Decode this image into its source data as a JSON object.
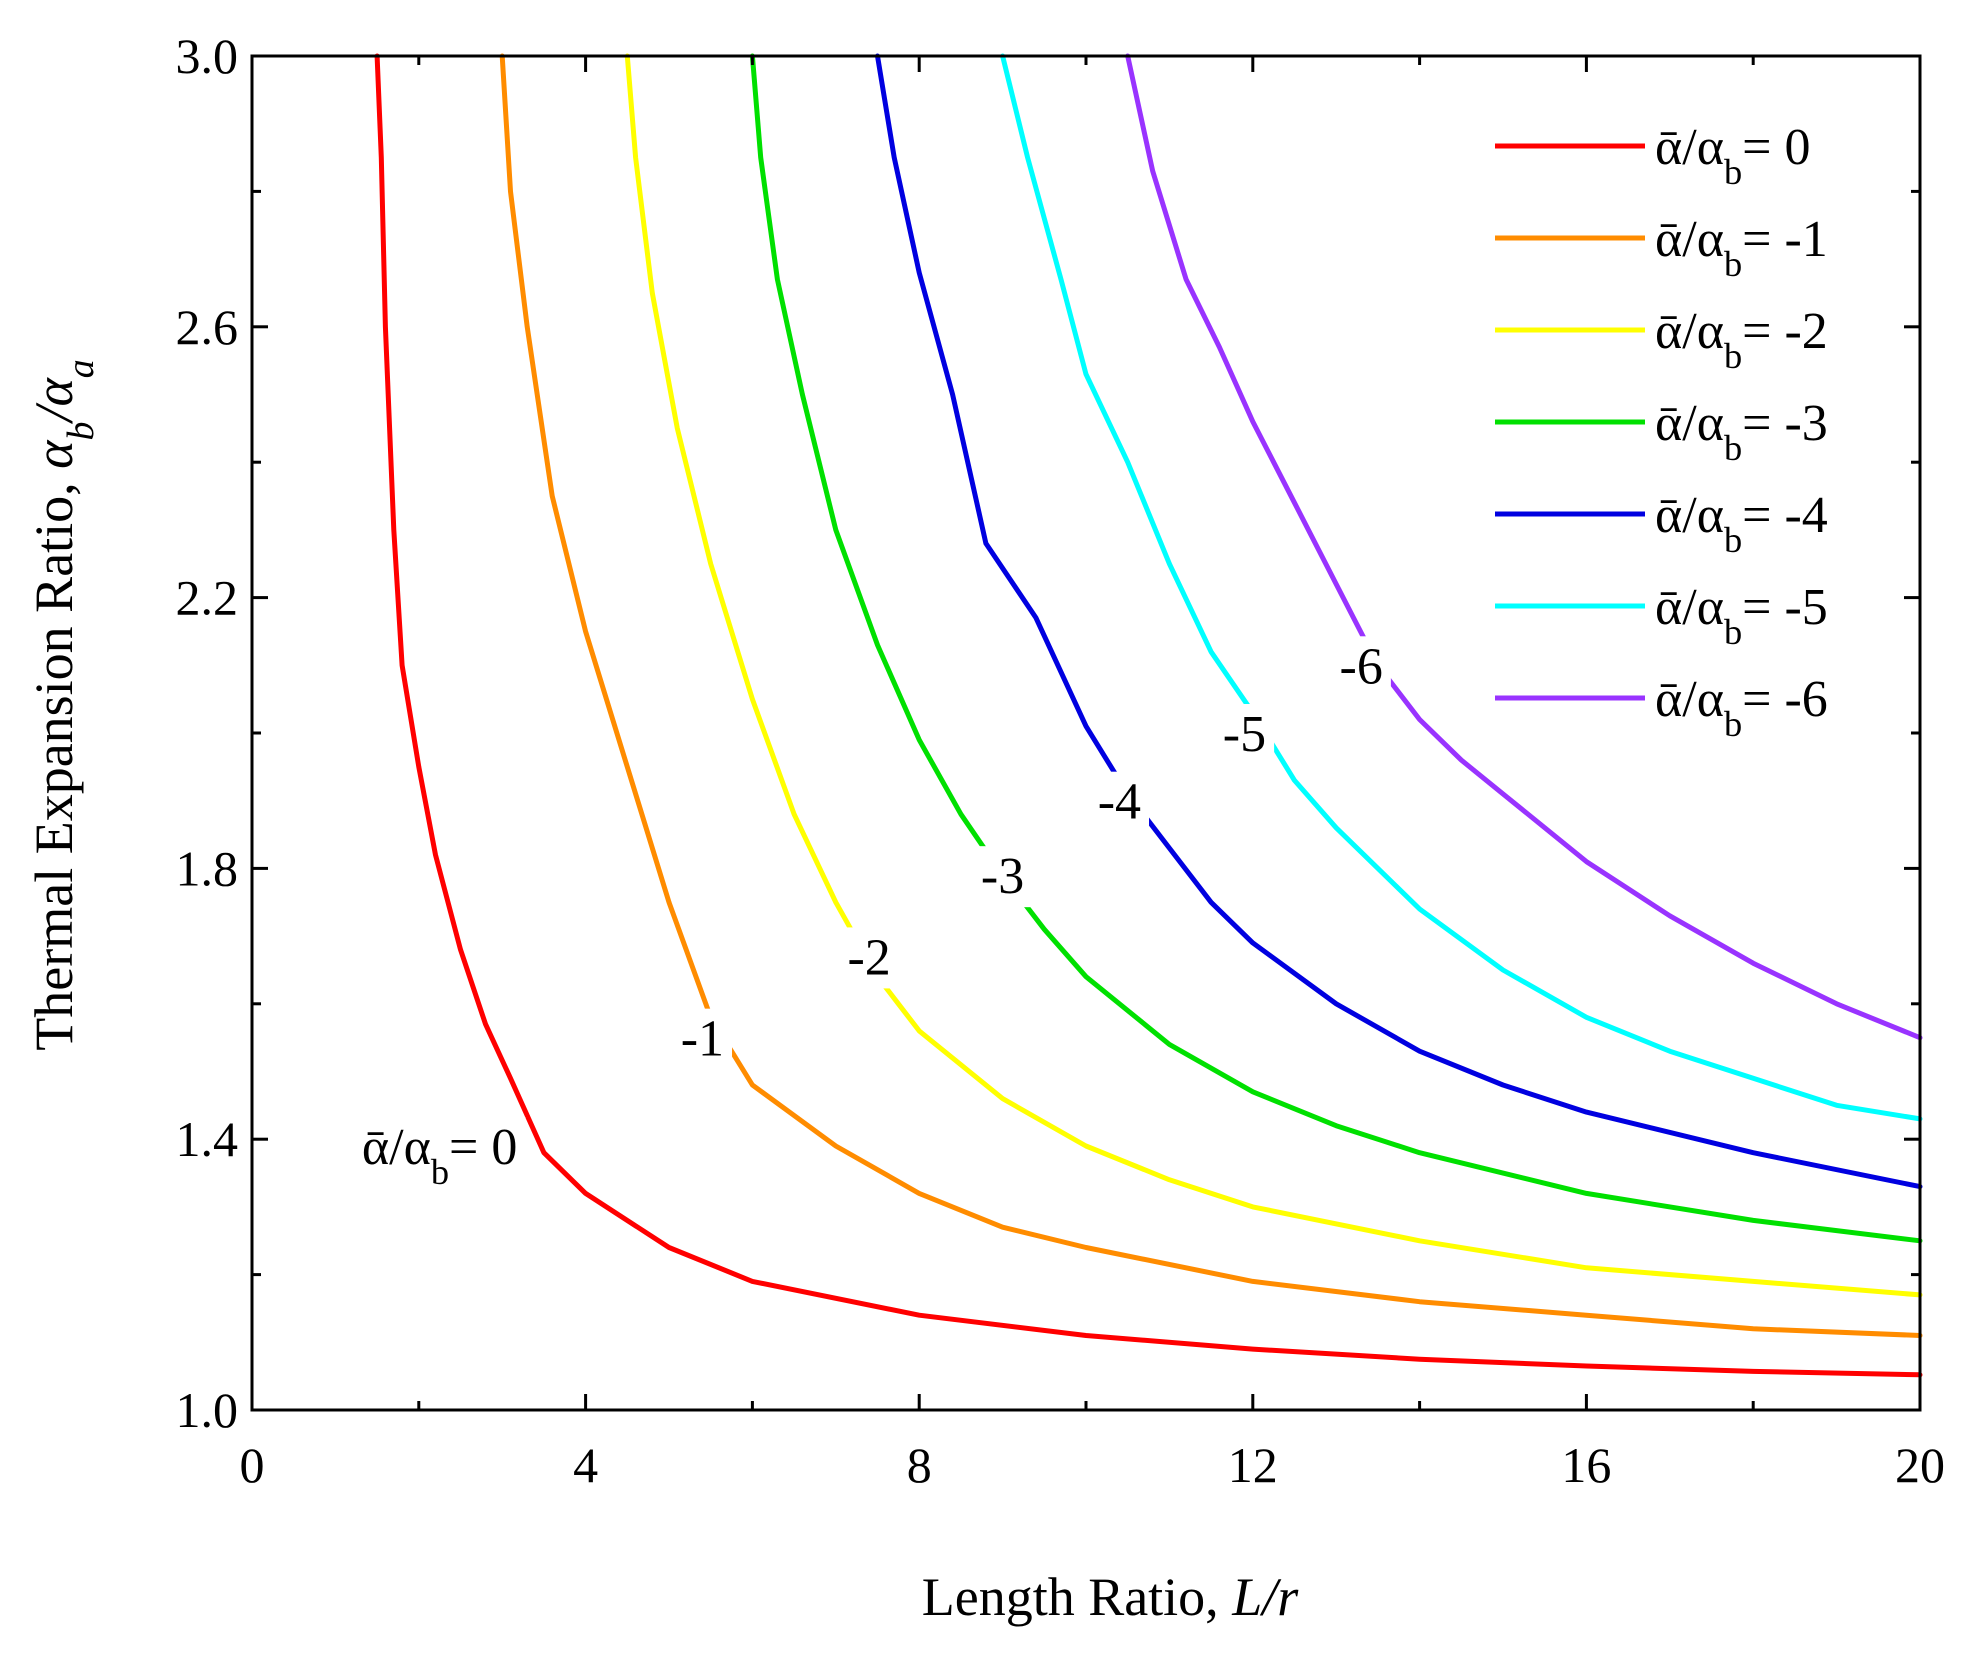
{
  "chart_data": {
    "type": "line",
    "xlabel": {
      "text": "Length Ratio, ",
      "italic": "L/r"
    },
    "ylabel": {
      "text": "Thermal Expansion Ratio, ",
      "italic": "α_b/α_a"
    },
    "xlim": [
      0,
      20
    ],
    "ylim": [
      1.0,
      3.0
    ],
    "x_ticks": [
      "0",
      "4",
      "8",
      "12",
      "16",
      "20"
    ],
    "y_ticks": [
      "1.0",
      "1.4",
      "1.8",
      "2.2",
      "2.6",
      "3.0"
    ],
    "grid": false,
    "legend_position": "top-right",
    "legend_symbol": "ᾱ/α_b=",
    "series": [
      {
        "name": "ᾱ/α_b=  0",
        "value": "0",
        "color": "#ff0000",
        "curve_label": "ᾱ/α_b= 0",
        "label_at": {
          "x": 2.25,
          "y": 1.39
        },
        "x": [
          1.5,
          1.55,
          1.6,
          1.7,
          1.8,
          2.0,
          2.2,
          2.5,
          2.8,
          3.1,
          3.5,
          4.0,
          5.0,
          6.0,
          8.0,
          10.0,
          12.0,
          14.0,
          16.0,
          18.0,
          20.0
        ],
        "y": [
          3.0,
          2.85,
          2.6,
          2.3,
          2.1,
          1.95,
          1.82,
          1.68,
          1.57,
          1.49,
          1.38,
          1.32,
          1.24,
          1.19,
          1.14,
          1.11,
          1.09,
          1.075,
          1.065,
          1.057,
          1.052
        ]
      },
      {
        "name": "ᾱ/α_b= -1",
        "value": "-1",
        "color": "#ff8c00",
        "curve_label": "-1",
        "label_at": {
          "x": 5.4,
          "y": 1.55
        },
        "x": [
          3.0,
          3.1,
          3.3,
          3.6,
          4.0,
          4.5,
          5.0,
          5.5,
          6.0,
          7.0,
          8.0,
          9.0,
          10.0,
          12.0,
          14.0,
          16.0,
          18.0,
          20.0
        ],
        "y": [
          3.0,
          2.8,
          2.6,
          2.35,
          2.15,
          1.95,
          1.75,
          1.58,
          1.48,
          1.39,
          1.32,
          1.27,
          1.24,
          1.19,
          1.16,
          1.14,
          1.12,
          1.11
        ]
      },
      {
        "name": "ᾱ/α_b= -2",
        "value": "-2",
        "color": "#ffff00",
        "curve_label": "-2",
        "label_at": {
          "x": 7.4,
          "y": 1.67
        },
        "x": [
          4.5,
          4.6,
          4.8,
          5.1,
          5.5,
          6.0,
          6.5,
          7.0,
          7.5,
          8.0,
          9.0,
          10.0,
          11.0,
          12.0,
          14.0,
          16.0,
          18.0,
          20.0
        ],
        "y": [
          3.0,
          2.85,
          2.65,
          2.45,
          2.25,
          2.05,
          1.88,
          1.75,
          1.64,
          1.56,
          1.46,
          1.39,
          1.34,
          1.3,
          1.25,
          1.21,
          1.19,
          1.17
        ]
      },
      {
        "name": "ᾱ/α_b= -3",
        "value": "-3",
        "color": "#00e000",
        "curve_label": "-3",
        "label_at": {
          "x": 9.0,
          "y": 1.79
        },
        "x": [
          6.0,
          6.1,
          6.3,
          6.6,
          7.0,
          7.5,
          8.0,
          8.5,
          9.0,
          9.5,
          10.0,
          11.0,
          12.0,
          13.0,
          14.0,
          16.0,
          18.0,
          20.0
        ],
        "y": [
          3.0,
          2.85,
          2.67,
          2.5,
          2.3,
          2.13,
          1.99,
          1.88,
          1.79,
          1.71,
          1.64,
          1.54,
          1.47,
          1.42,
          1.38,
          1.32,
          1.28,
          1.25
        ]
      },
      {
        "name": "ᾱ/α_b= -4",
        "value": "-4",
        "color": "#0000e0",
        "curve_label": "-4",
        "label_at": {
          "x": 10.4,
          "y": 1.9
        },
        "x": [
          7.5,
          7.7,
          8.0,
          8.4,
          8.8,
          9.4,
          10.0,
          10.5,
          11.0,
          11.5,
          12.0,
          13.0,
          14.0,
          15.0,
          16.0,
          18.0,
          20.0
        ],
        "y": [
          3.0,
          2.85,
          2.68,
          2.5,
          2.28,
          2.17,
          2.01,
          1.91,
          1.83,
          1.75,
          1.69,
          1.6,
          1.53,
          1.48,
          1.44,
          1.38,
          1.33
        ]
      },
      {
        "name": "ᾱ/α_b= -5",
        "value": "-5",
        "color": "#00ffff",
        "curve_label": "-5",
        "label_at": {
          "x": 11.9,
          "y": 2.0
        },
        "x": [
          9.0,
          9.3,
          9.7,
          10.0,
          10.5,
          11.0,
          11.5,
          12.0,
          12.5,
          13.0,
          14.0,
          15.0,
          16.0,
          17.0,
          18.0,
          19.0,
          20.0
        ],
        "y": [
          3.0,
          2.85,
          2.67,
          2.53,
          2.4,
          2.25,
          2.12,
          2.03,
          1.93,
          1.86,
          1.74,
          1.65,
          1.58,
          1.53,
          1.49,
          1.45,
          1.43
        ]
      },
      {
        "name": "ᾱ/α_b= -6",
        "value": "-6",
        "color": "#9933ff",
        "curve_label": "-6",
        "label_at": {
          "x": 13.3,
          "y": 2.1
        },
        "x": [
          10.5,
          10.8,
          11.2,
          11.6,
          12.0,
          12.5,
          13.0,
          13.5,
          14.0,
          14.5,
          15.0,
          16.0,
          17.0,
          18.0,
          19.0,
          20.0
        ],
        "y": [
          3.0,
          2.83,
          2.67,
          2.57,
          2.46,
          2.34,
          2.22,
          2.1,
          2.02,
          1.96,
          1.91,
          1.81,
          1.73,
          1.66,
          1.6,
          1.55
        ]
      }
    ]
  }
}
